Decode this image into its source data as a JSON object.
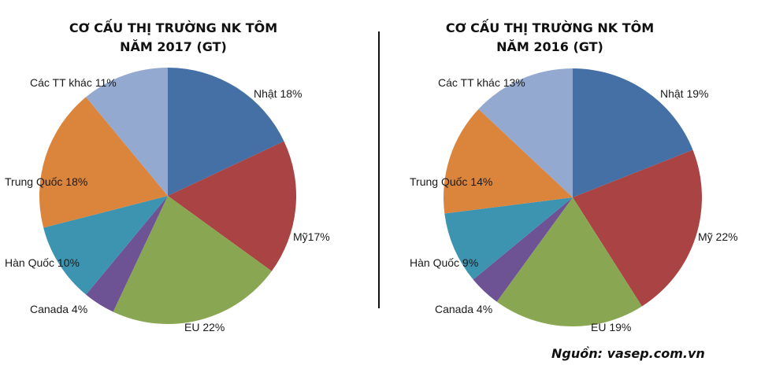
{
  "chart_data": [
    {
      "type": "pie",
      "title": [
        "CƠ CẤU THỊ TRƯỜNG NK TÔM",
        "NĂM 2017 (GT)"
      ],
      "slices": [
        {
          "label": "Nhật 18%",
          "value": 18,
          "color": "#4470A6"
        },
        {
          "label": "Mỹ17%",
          "value": 17,
          "color": "#A94344"
        },
        {
          "label": "EU 22%",
          "value": 22,
          "color": "#89A752"
        },
        {
          "label": "Canada 4%",
          "value": 4,
          "color": "#6E5394"
        },
        {
          "label": "Hàn Quốc 10%",
          "value": 10,
          "color": "#3D94B0"
        },
        {
          "label": "Trung Quốc 18%",
          "value": 18,
          "color": "#DB843C"
        },
        {
          "label": "Các TT khác 11%",
          "value": 11,
          "color": "#93A9D0"
        }
      ]
    },
    {
      "type": "pie",
      "title": [
        "CƠ CẤU THỊ TRƯỜNG NK TÔM",
        "NĂM 2016 (GT)"
      ],
      "slices": [
        {
          "label": "Nhật 19%",
          "value": 19,
          "color": "#4470A6"
        },
        {
          "label": "Mỹ 22%",
          "value": 22,
          "color": "#A94344"
        },
        {
          "label": "EU 19%",
          "value": 19,
          "color": "#89A752"
        },
        {
          "label": "Canada 4%",
          "value": 4,
          "color": "#6E5394"
        },
        {
          "label": "Hàn Quốc 9%",
          "value": 9,
          "color": "#3D94B0"
        },
        {
          "label": "Trung Quốc 14%",
          "value": 14,
          "color": "#DB843C"
        },
        {
          "label": "Các TT khác 13%",
          "value": 13,
          "color": "#93A9D0"
        }
      ]
    }
  ],
  "source": "Nguồn: vasep.com.vn"
}
